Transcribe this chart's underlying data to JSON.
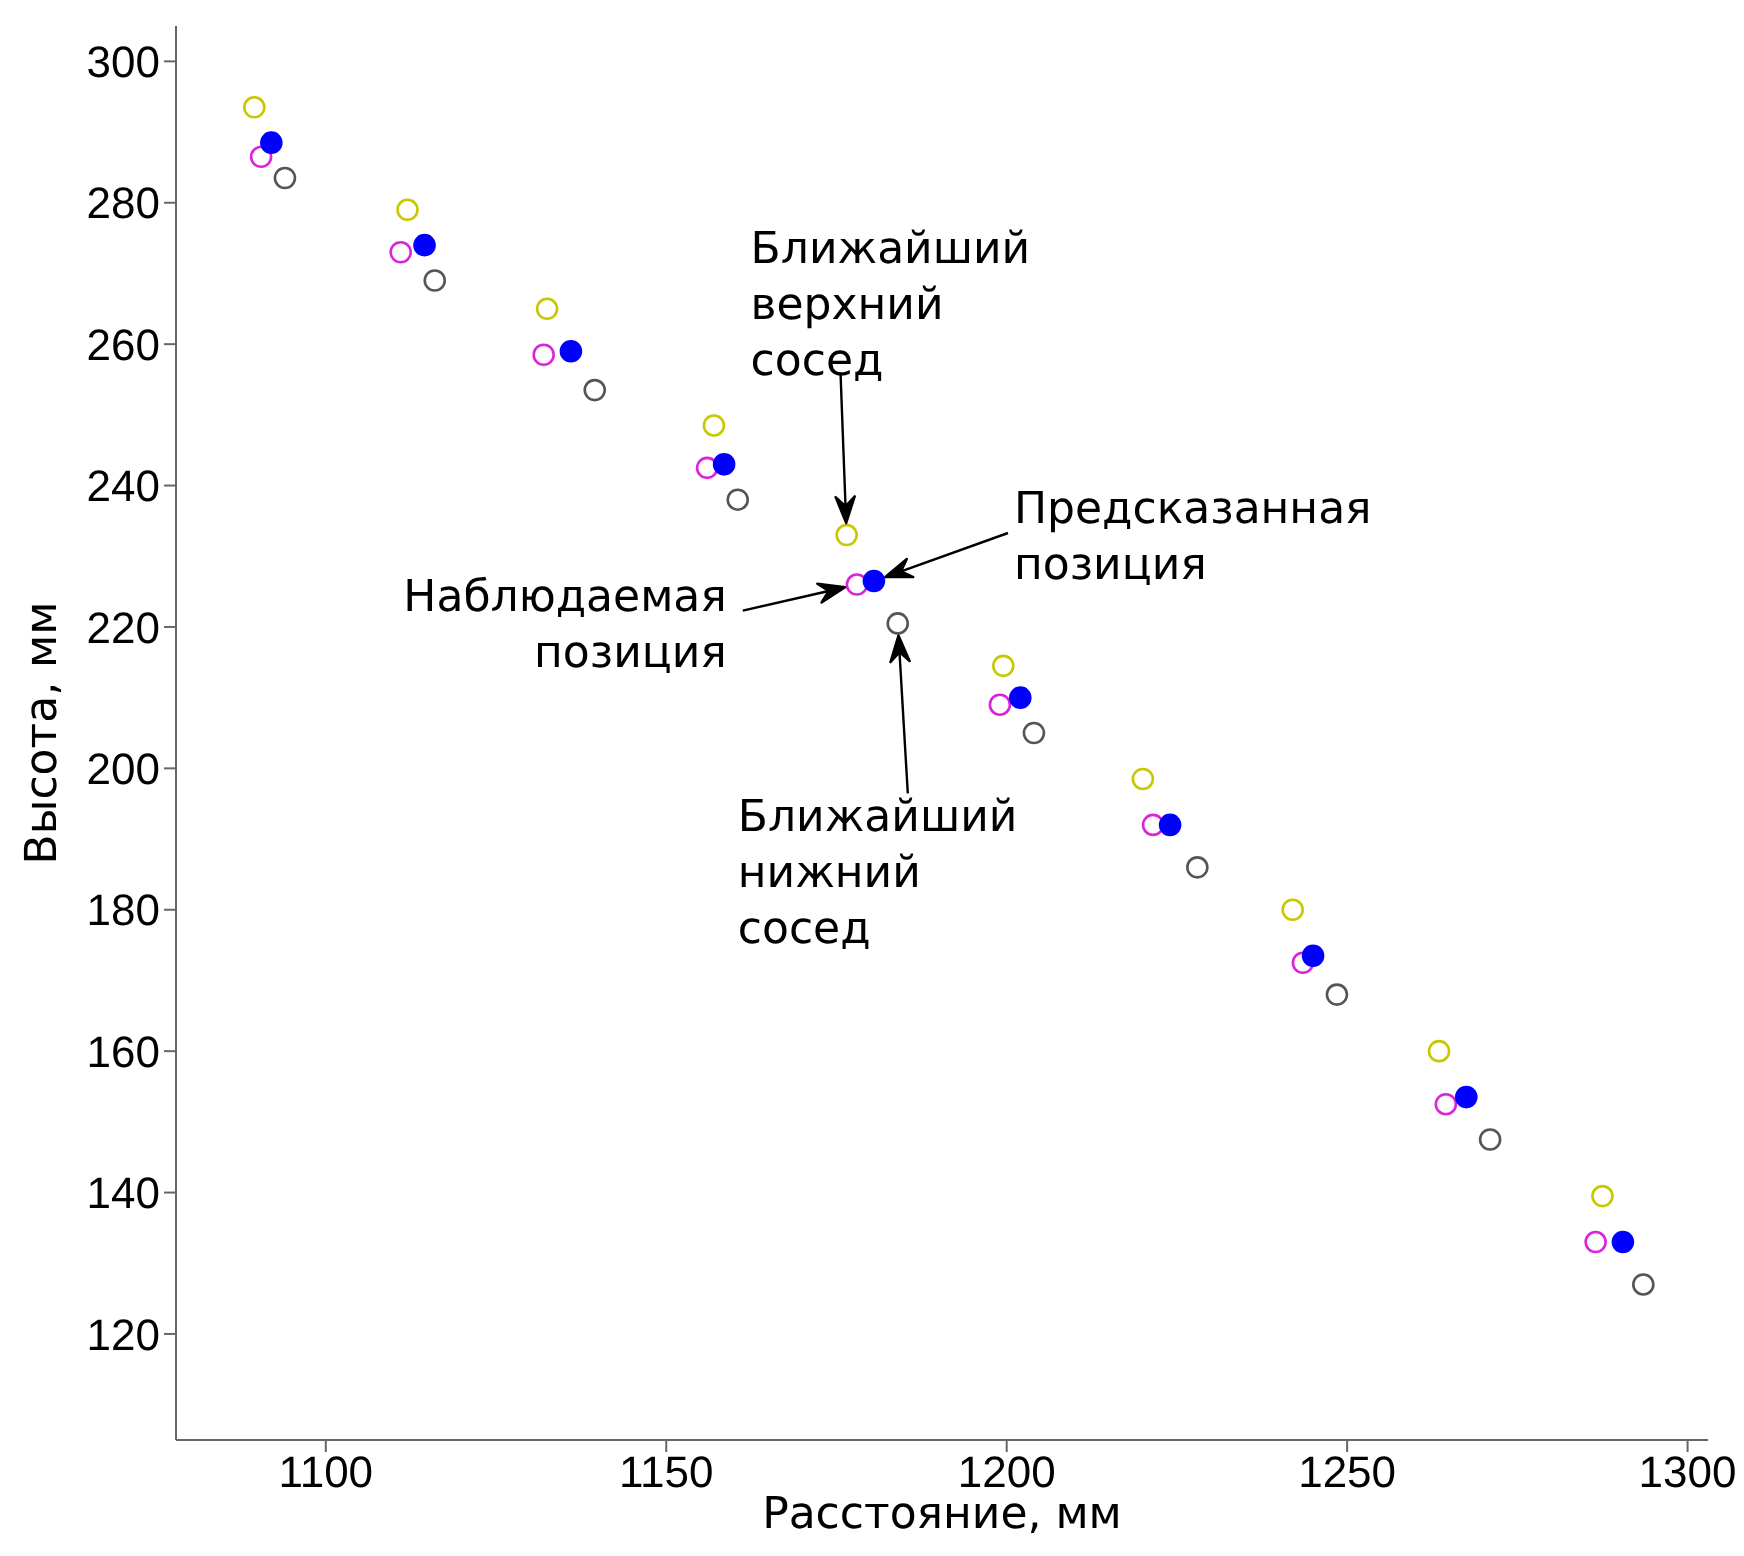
{
  "chart_data": {
    "type": "scatter",
    "xlabel": "Расстояние, мм",
    "ylabel": "Высота, мм",
    "xlim": [
      1078,
      1303
    ],
    "xticks": [
      1100,
      1150,
      1200,
      1250,
      1300
    ],
    "ylim": [
      105,
      305
    ],
    "yticks": [
      120,
      140,
      160,
      180,
      200,
      220,
      240,
      260,
      280,
      300
    ],
    "grid": false,
    "legend": false,
    "marker": "circle",
    "series": [
      {
        "color": "#c8c800",
        "x": [
          1089.5,
          1112,
          1132.5,
          1157,
          1176.5,
          1199.5,
          1220,
          1242,
          1263.5,
          1287.5
        ],
        "values": [
          293.5,
          279,
          265,
          248.5,
          233,
          214.5,
          198.5,
          180,
          160,
          139.5
        ]
      },
      {
        "color": "#dd22dd",
        "x": [
          1090.5,
          1111,
          1132,
          1156,
          1178,
          1199,
          1221.5,
          1243.5,
          1264.5,
          1286.5
        ],
        "values": [
          286.5,
          273,
          258.5,
          242.5,
          226,
          209,
          192,
          172.5,
          152.5,
          133
        ]
      },
      {
        "color": "#0000ff",
        "x": [
          1092,
          1114.5,
          1136,
          1158.5,
          1180.5,
          1202,
          1224,
          1245,
          1267.5,
          1290.5
        ],
        "values": [
          288.5,
          274,
          259,
          243,
          226.5,
          210,
          192,
          173.5,
          153.5,
          133
        ]
      },
      {
        "color": "#555555",
        "x": [
          1094,
          1116,
          1139.5,
          1160.5,
          1184,
          1204,
          1228,
          1248.5,
          1271,
          1293.5
        ],
        "values": [
          283.5,
          269,
          253.5,
          238,
          220.5,
          205,
          186,
          168,
          147.5,
          127
        ]
      }
    ],
    "annotations": [
      "Ближайший верхний сосед",
      "Наблюдаемая позиция",
      "Предсказанная позиция",
      "Ближайший нижний сосед"
    ]
  }
}
